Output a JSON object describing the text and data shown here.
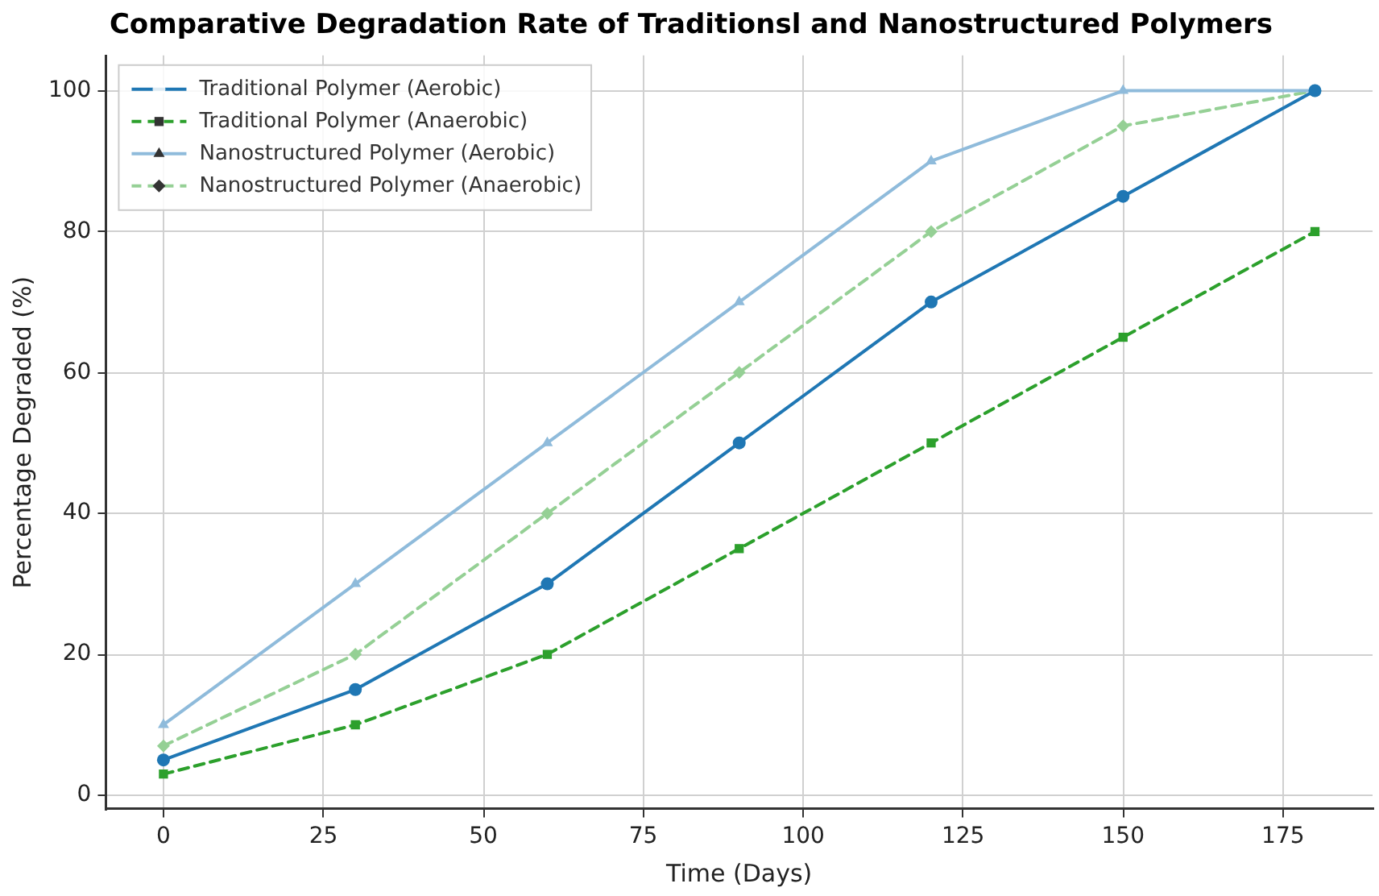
{
  "chart_data": {
    "type": "line",
    "title": "Comparative Degradation Rate of Traditionsl and Nanostructured Polymers",
    "xlabel": "Time (Days)",
    "ylabel": "Percentage Degraded (%)",
    "x": [
      0,
      30,
      60,
      90,
      120,
      150,
      180
    ],
    "series": [
      {
        "name": "Traditional Polymer (Aerobic)",
        "color": "#1f77b4",
        "marker": "circle",
        "line_style": "solid",
        "values": [
          5,
          15,
          30,
          50,
          70,
          85,
          100
        ]
      },
      {
        "name": "Traditional Polymer (Anaerobic)",
        "color": "#2ca02c",
        "marker": "square",
        "line_style": "dashed",
        "values": [
          3,
          10,
          20,
          35,
          50,
          65,
          80
        ]
      },
      {
        "name": "Nanostructured Polymer (Aerobic)",
        "color": "#8fbbdb",
        "marker": "triangle",
        "line_style": "solid",
        "values": [
          10,
          30,
          50,
          70,
          90,
          100,
          100
        ]
      },
      {
        "name": "Nanostructured Polymer (Anaerobic)",
        "color": "#95d095",
        "marker": "diamond",
        "line_style": "dashed",
        "values": [
          7,
          20,
          40,
          60,
          80,
          95,
          100
        ]
      }
    ],
    "xlim": [
      -9,
      189
    ],
    "xticks": [
      0,
      25,
      50,
      75,
      100,
      125,
      150,
      175
    ],
    "ylim": [
      -2,
      105
    ],
    "yticks": [
      0,
      20,
      40,
      60,
      80,
      100
    ],
    "grid": true,
    "legend": "top left"
  }
}
